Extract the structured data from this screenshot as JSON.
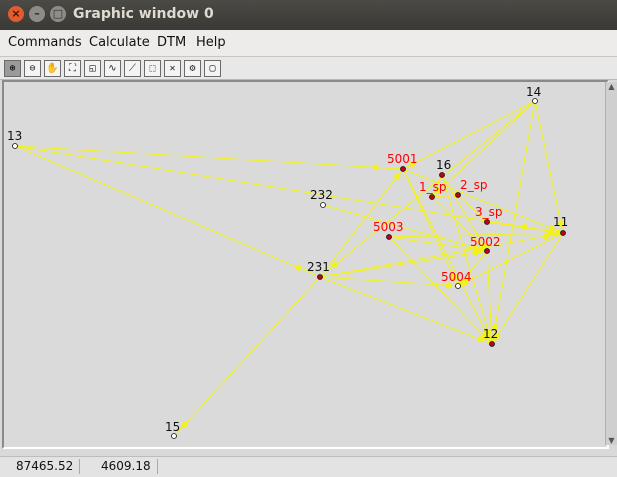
{
  "window": {
    "title": "Graphic window 0"
  },
  "menubar": {
    "items": [
      "Commands",
      "Calculate",
      "DTM",
      "Help"
    ]
  },
  "toolbar": {
    "tools": [
      "zoom-in-icon",
      "zoom-out-icon",
      "pan-hand-icon",
      "zoom-extent-icon",
      "zoom-window-icon",
      "draw-line-icon",
      "measure-icon",
      "select-icon",
      "reset-icon",
      "settings-icon",
      "frame-icon"
    ]
  },
  "points": [
    {
      "id": "13",
      "label": "13",
      "type": "white"
    },
    {
      "id": "14",
      "label": "14",
      "type": "white"
    },
    {
      "id": "16",
      "label": "16",
      "type": "red"
    },
    {
      "id": "232",
      "label": "232",
      "type": "white"
    },
    {
      "id": "231",
      "label": "231",
      "type": "red"
    },
    {
      "id": "11",
      "label": "11",
      "type": "red"
    },
    {
      "id": "12",
      "label": "12",
      "type": "red"
    },
    {
      "id": "15",
      "label": "15",
      "type": "white"
    },
    {
      "id": "5001",
      "label": "5001",
      "type": "red"
    },
    {
      "id": "5003",
      "label": "5003",
      "type": "red"
    },
    {
      "id": "5002",
      "label": "5002",
      "type": "red"
    },
    {
      "id": "5004",
      "label": "5004",
      "type": "white"
    },
    {
      "id": "1sp",
      "label": "1_sp",
      "type": "red"
    },
    {
      "id": "2sp",
      "label": "2_sp",
      "type": "red"
    },
    {
      "id": "3sp",
      "label": "3_sp",
      "type": "red"
    }
  ],
  "colors": {
    "line": "#f2f21a",
    "label_new": "#ff0000",
    "label_known": "#111111",
    "canvas": "#dadada"
  },
  "status": {
    "x": "87465.52",
    "y": "4609.18"
  }
}
